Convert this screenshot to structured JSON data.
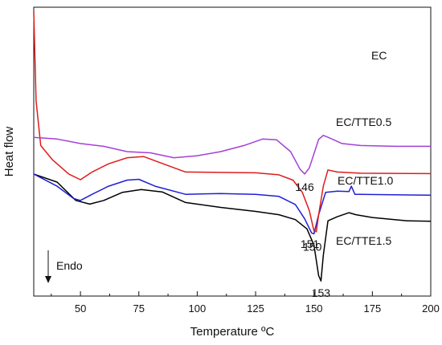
{
  "chart_data": {
    "type": "line",
    "xlabel": "Temperature ºC",
    "ylabel": "Heat flow",
    "xlim": [
      30,
      200
    ],
    "x_ticks": [
      50,
      75,
      100,
      125,
      150,
      175,
      200
    ],
    "annotation": {
      "label": "Endo",
      "direction": "down"
    },
    "series": [
      {
        "name": "EC",
        "color": "#000000",
        "peak_label": "153",
        "points": [
          [
            30,
            20
          ],
          [
            40,
            18
          ],
          [
            48,
            13.5
          ],
          [
            54,
            12.6
          ],
          [
            60,
            13.5
          ],
          [
            68,
            15.5
          ],
          [
            76,
            16.2
          ],
          [
            85,
            15.6
          ],
          [
            95,
            13
          ],
          [
            110,
            11.8
          ],
          [
            125,
            10.8
          ],
          [
            135,
            10
          ],
          [
            142,
            8.8
          ],
          [
            147,
            6.5
          ],
          [
            150,
            2.5
          ],
          [
            152,
            -5
          ],
          [
            153,
            -6.3
          ],
          [
            154,
            0
          ],
          [
            156,
            8.5
          ],
          [
            160,
            9.5
          ],
          [
            165,
            10.5
          ],
          [
            168,
            10
          ],
          [
            175,
            9.3
          ],
          [
            190,
            8.5
          ],
          [
            200,
            8.4
          ]
        ]
      },
      {
        "name": "EC/TTE0.5",
        "color": "#1f1fd6",
        "peak_label": "150",
        "points": [
          [
            30,
            20
          ],
          [
            40,
            17
          ],
          [
            47,
            14
          ],
          [
            50,
            13.5
          ],
          [
            55,
            15
          ],
          [
            62,
            17
          ],
          [
            70,
            18.5
          ],
          [
            75,
            18.7
          ],
          [
            82,
            17
          ],
          [
            95,
            15
          ],
          [
            110,
            15.2
          ],
          [
            125,
            15
          ],
          [
            135,
            14.5
          ],
          [
            142,
            12.5
          ],
          [
            146,
            9
          ],
          [
            149,
            5.5
          ],
          [
            150,
            5.3
          ],
          [
            152,
            10
          ],
          [
            155,
            15.5
          ],
          [
            160,
            15.8
          ],
          [
            165,
            15.7
          ],
          [
            166,
            17
          ],
          [
            167.5,
            15
          ],
          [
            170,
            15
          ],
          [
            200,
            14.8
          ]
        ]
      },
      {
        "name": "EC/TTE1.0",
        "color": "#e01b1b",
        "peak_label": "151",
        "points": [
          [
            30,
            60
          ],
          [
            31,
            38
          ],
          [
            33,
            27
          ],
          [
            38,
            23.5
          ],
          [
            45,
            20
          ],
          [
            50,
            18.6
          ],
          [
            55,
            20.5
          ],
          [
            62,
            22.5
          ],
          [
            70,
            24
          ],
          [
            77,
            24.3
          ],
          [
            85,
            22.6
          ],
          [
            95,
            20.5
          ],
          [
            110,
            20.4
          ],
          [
            125,
            20.3
          ],
          [
            135,
            19.8
          ],
          [
            141,
            18.5
          ],
          [
            145,
            15.5
          ],
          [
            148,
            11
          ],
          [
            150,
            6
          ],
          [
            151,
            5.8
          ],
          [
            152,
            10
          ],
          [
            154,
            17
          ],
          [
            156,
            21
          ],
          [
            160,
            20.5
          ],
          [
            170,
            20.2
          ],
          [
            200,
            20.1
          ]
        ]
      },
      {
        "name": "EC/TTE1.5",
        "color": "#a43fd6",
        "peak_label": "146",
        "points": [
          [
            30,
            29
          ],
          [
            40,
            28.6
          ],
          [
            50,
            27.5
          ],
          [
            60,
            26.8
          ],
          [
            70,
            25.5
          ],
          [
            80,
            25.2
          ],
          [
            90,
            24
          ],
          [
            100,
            24.5
          ],
          [
            110,
            25.5
          ],
          [
            120,
            27
          ],
          [
            128,
            28.6
          ],
          [
            134,
            28.4
          ],
          [
            140,
            25.5
          ],
          [
            144,
            21.2
          ],
          [
            146,
            20
          ],
          [
            148,
            21.5
          ],
          [
            150,
            25
          ],
          [
            152,
            28.5
          ],
          [
            154,
            29.5
          ],
          [
            157,
            28.8
          ],
          [
            162,
            27.5
          ],
          [
            170,
            27
          ],
          [
            185,
            26.8
          ],
          [
            200,
            26.8
          ]
        ]
      }
    ]
  }
}
